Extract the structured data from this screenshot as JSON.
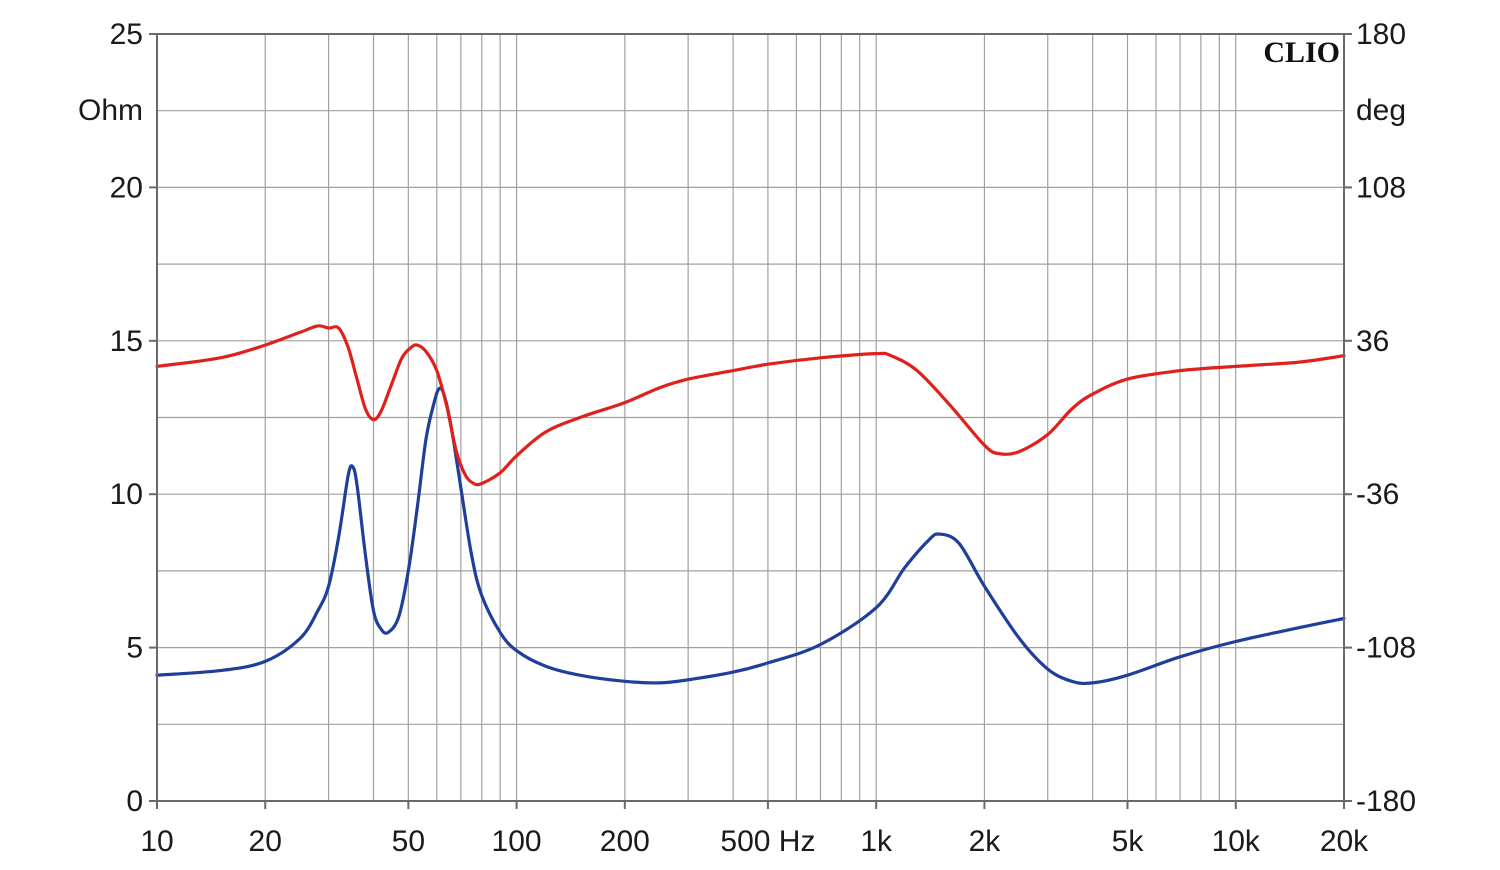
{
  "chart_data": {
    "type": "line",
    "brand": "CLIO",
    "x_axis": {
      "scale": "log",
      "range": [
        10,
        20000
      ],
      "tick_values": [
        10,
        20,
        50,
        100,
        200,
        500,
        1000,
        2000,
        5000,
        10000,
        20000
      ],
      "tick_labels": [
        "10",
        "20",
        "50",
        "100",
        "200",
        "500 Hz",
        "1k",
        "2k",
        "5k",
        "10k",
        "20k"
      ]
    },
    "y_left": {
      "unit_label": "Ohm",
      "range": [
        0,
        25
      ],
      "tick_values": [
        0,
        5,
        10,
        15,
        20,
        25
      ],
      "tick_labels": [
        "0",
        "5",
        "10",
        "15",
        "20",
        "25"
      ]
    },
    "y_right": {
      "unit_label": "deg",
      "range": [
        -180,
        180
      ],
      "tick_values": [
        -180,
        -108,
        -36,
        36,
        108,
        180
      ],
      "tick_labels": [
        "-180",
        "-108",
        "-36",
        "36",
        "108",
        "180"
      ]
    },
    "grid": true,
    "colors": {
      "impedance": "#1f3f9a",
      "phase": "#e0201b",
      "grid": "#a0a0a0",
      "frame": "#6a6a6a"
    },
    "series": [
      {
        "key": "impedance",
        "axis": "left",
        "points": [
          [
            10,
            4.1
          ],
          [
            15,
            4.25
          ],
          [
            20,
            4.55
          ],
          [
            25,
            5.3
          ],
          [
            28,
            6.2
          ],
          [
            30,
            7.0
          ],
          [
            32,
            8.6
          ],
          [
            34,
            10.6
          ],
          [
            35,
            10.9
          ],
          [
            36,
            10.3
          ],
          [
            38,
            8.0
          ],
          [
            40,
            6.2
          ],
          [
            42,
            5.6
          ],
          [
            44,
            5.5
          ],
          [
            47,
            6.0
          ],
          [
            50,
            7.5
          ],
          [
            53,
            9.6
          ],
          [
            56,
            11.8
          ],
          [
            59,
            13.0
          ],
          [
            61,
            13.45
          ],
          [
            63,
            13.2
          ],
          [
            66,
            12.1
          ],
          [
            70,
            10.2
          ],
          [
            75,
            8.0
          ],
          [
            80,
            6.7
          ],
          [
            90,
            5.5
          ],
          [
            100,
            4.9
          ],
          [
            120,
            4.4
          ],
          [
            150,
            4.1
          ],
          [
            200,
            3.9
          ],
          [
            250,
            3.85
          ],
          [
            300,
            3.95
          ],
          [
            400,
            4.2
          ],
          [
            500,
            4.5
          ],
          [
            700,
            5.1
          ],
          [
            1000,
            6.3
          ],
          [
            1200,
            7.6
          ],
          [
            1400,
            8.5
          ],
          [
            1500,
            8.7
          ],
          [
            1700,
            8.4
          ],
          [
            2000,
            7.0
          ],
          [
            2500,
            5.3
          ],
          [
            3000,
            4.3
          ],
          [
            3500,
            3.9
          ],
          [
            4000,
            3.85
          ],
          [
            5000,
            4.1
          ],
          [
            7000,
            4.7
          ],
          [
            10000,
            5.2
          ],
          [
            15000,
            5.65
          ],
          [
            20000,
            5.95
          ]
        ]
      },
      {
        "key": "phase",
        "axis": "right",
        "points": [
          [
            10,
            24
          ],
          [
            15,
            28
          ],
          [
            20,
            34
          ],
          [
            25,
            40
          ],
          [
            28,
            43
          ],
          [
            30,
            42
          ],
          [
            32,
            42
          ],
          [
            34,
            33
          ],
          [
            36,
            18
          ],
          [
            38,
            4
          ],
          [
            40,
            -1
          ],
          [
            42,
            3
          ],
          [
            45,
            16
          ],
          [
            48,
            28
          ],
          [
            51,
            33
          ],
          [
            53,
            34
          ],
          [
            56,
            31
          ],
          [
            60,
            22
          ],
          [
            64,
            5
          ],
          [
            68,
            -16
          ],
          [
            72,
            -27
          ],
          [
            76,
            -31
          ],
          [
            80,
            -31
          ],
          [
            90,
            -26
          ],
          [
            100,
            -18
          ],
          [
            120,
            -7
          ],
          [
            150,
            0
          ],
          [
            200,
            7
          ],
          [
            250,
            14
          ],
          [
            300,
            18
          ],
          [
            400,
            22
          ],
          [
            500,
            25
          ],
          [
            700,
            28
          ],
          [
            1000,
            30
          ],
          [
            1100,
            29
          ],
          [
            1300,
            22
          ],
          [
            1600,
            6
          ],
          [
            2000,
            -13
          ],
          [
            2200,
            -17
          ],
          [
            2500,
            -16
          ],
          [
            3000,
            -8
          ],
          [
            3500,
            4
          ],
          [
            4000,
            11
          ],
          [
            5000,
            18
          ],
          [
            7000,
            22
          ],
          [
            10000,
            24
          ],
          [
            15000,
            26
          ],
          [
            20000,
            29
          ]
        ]
      }
    ]
  }
}
